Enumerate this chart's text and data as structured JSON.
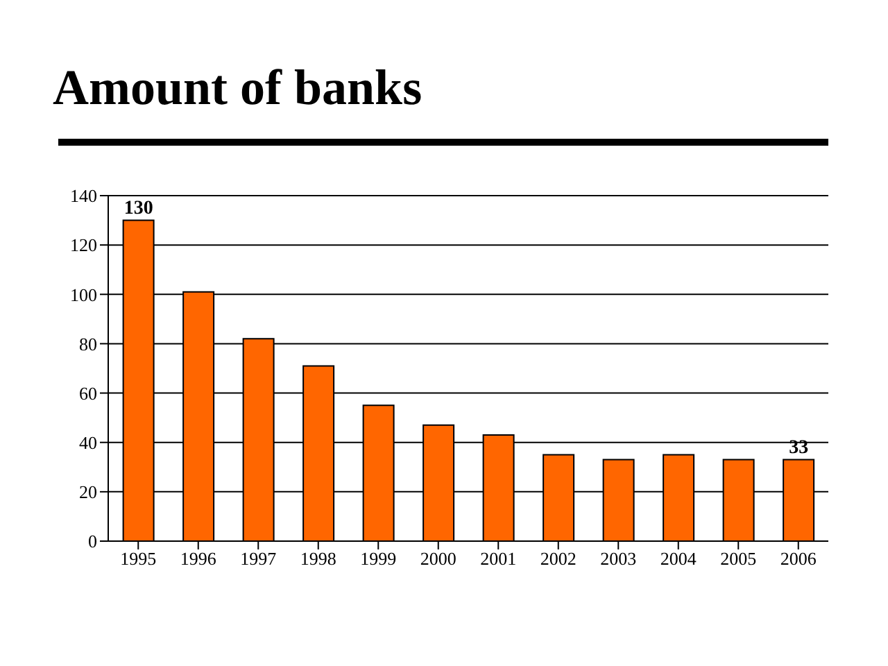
{
  "chart_data": {
    "type": "bar",
    "title": "Amount of banks",
    "categories": [
      "1995",
      "1996",
      "1997",
      "1998",
      "1999",
      "2000",
      "2001",
      "2002",
      "2003",
      "2004",
      "2005",
      "2006"
    ],
    "values": [
      130,
      101,
      82,
      71,
      55,
      47,
      43,
      35,
      33,
      35,
      33,
      33
    ],
    "value_labels": [
      "130",
      null,
      null,
      null,
      null,
      null,
      null,
      null,
      null,
      null,
      null,
      "33"
    ],
    "color": "#ff6600",
    "ylim": [
      0,
      140
    ],
    "yticks": [
      0,
      20,
      40,
      60,
      80,
      100,
      120,
      140
    ],
    "grid": "y"
  }
}
